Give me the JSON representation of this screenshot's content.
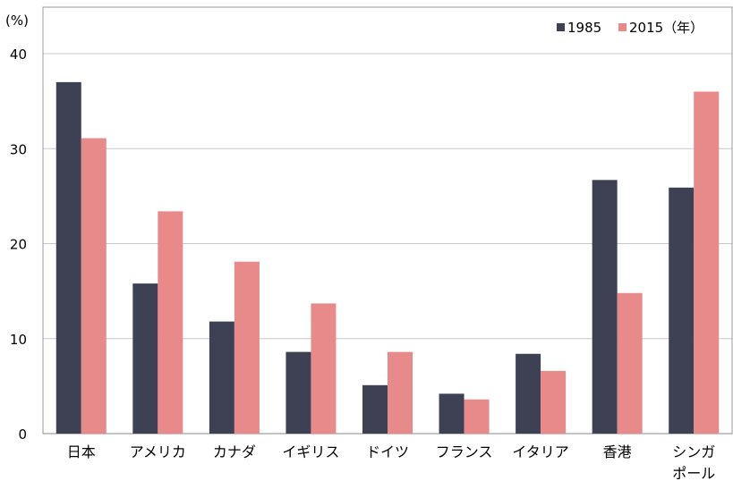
{
  "chart_data": {
    "type": "bar",
    "ylabel": "(%)",
    "ylim": [
      0,
      40
    ],
    "yticks": [
      0,
      10,
      20,
      30,
      40
    ],
    "grid": true,
    "legend_position": "top-right",
    "categories": [
      "日本",
      "アメリカ",
      "カナダ",
      "イギリス",
      "ドイツ",
      "フランス",
      "イタリア",
      "香港",
      "シンガポール"
    ],
    "category_lines": [
      [
        "日本"
      ],
      [
        "アメリカ"
      ],
      [
        "カナダ"
      ],
      [
        "イギリス"
      ],
      [
        "ドイツ"
      ],
      [
        "フランス"
      ],
      [
        "イタリア"
      ],
      [
        "香港"
      ],
      [
        "シンガ",
        "ポール"
      ]
    ],
    "series": [
      {
        "name": "1985",
        "color": "#3d4153",
        "values": [
          37.0,
          15.8,
          11.8,
          8.6,
          5.1,
          4.2,
          8.4,
          26.7,
          25.9
        ]
      },
      {
        "name": "2015（年）",
        "color": "#e8898a",
        "values": [
          31.1,
          23.4,
          18.1,
          13.7,
          8.6,
          3.6,
          6.6,
          14.8,
          36.0
        ]
      }
    ]
  }
}
